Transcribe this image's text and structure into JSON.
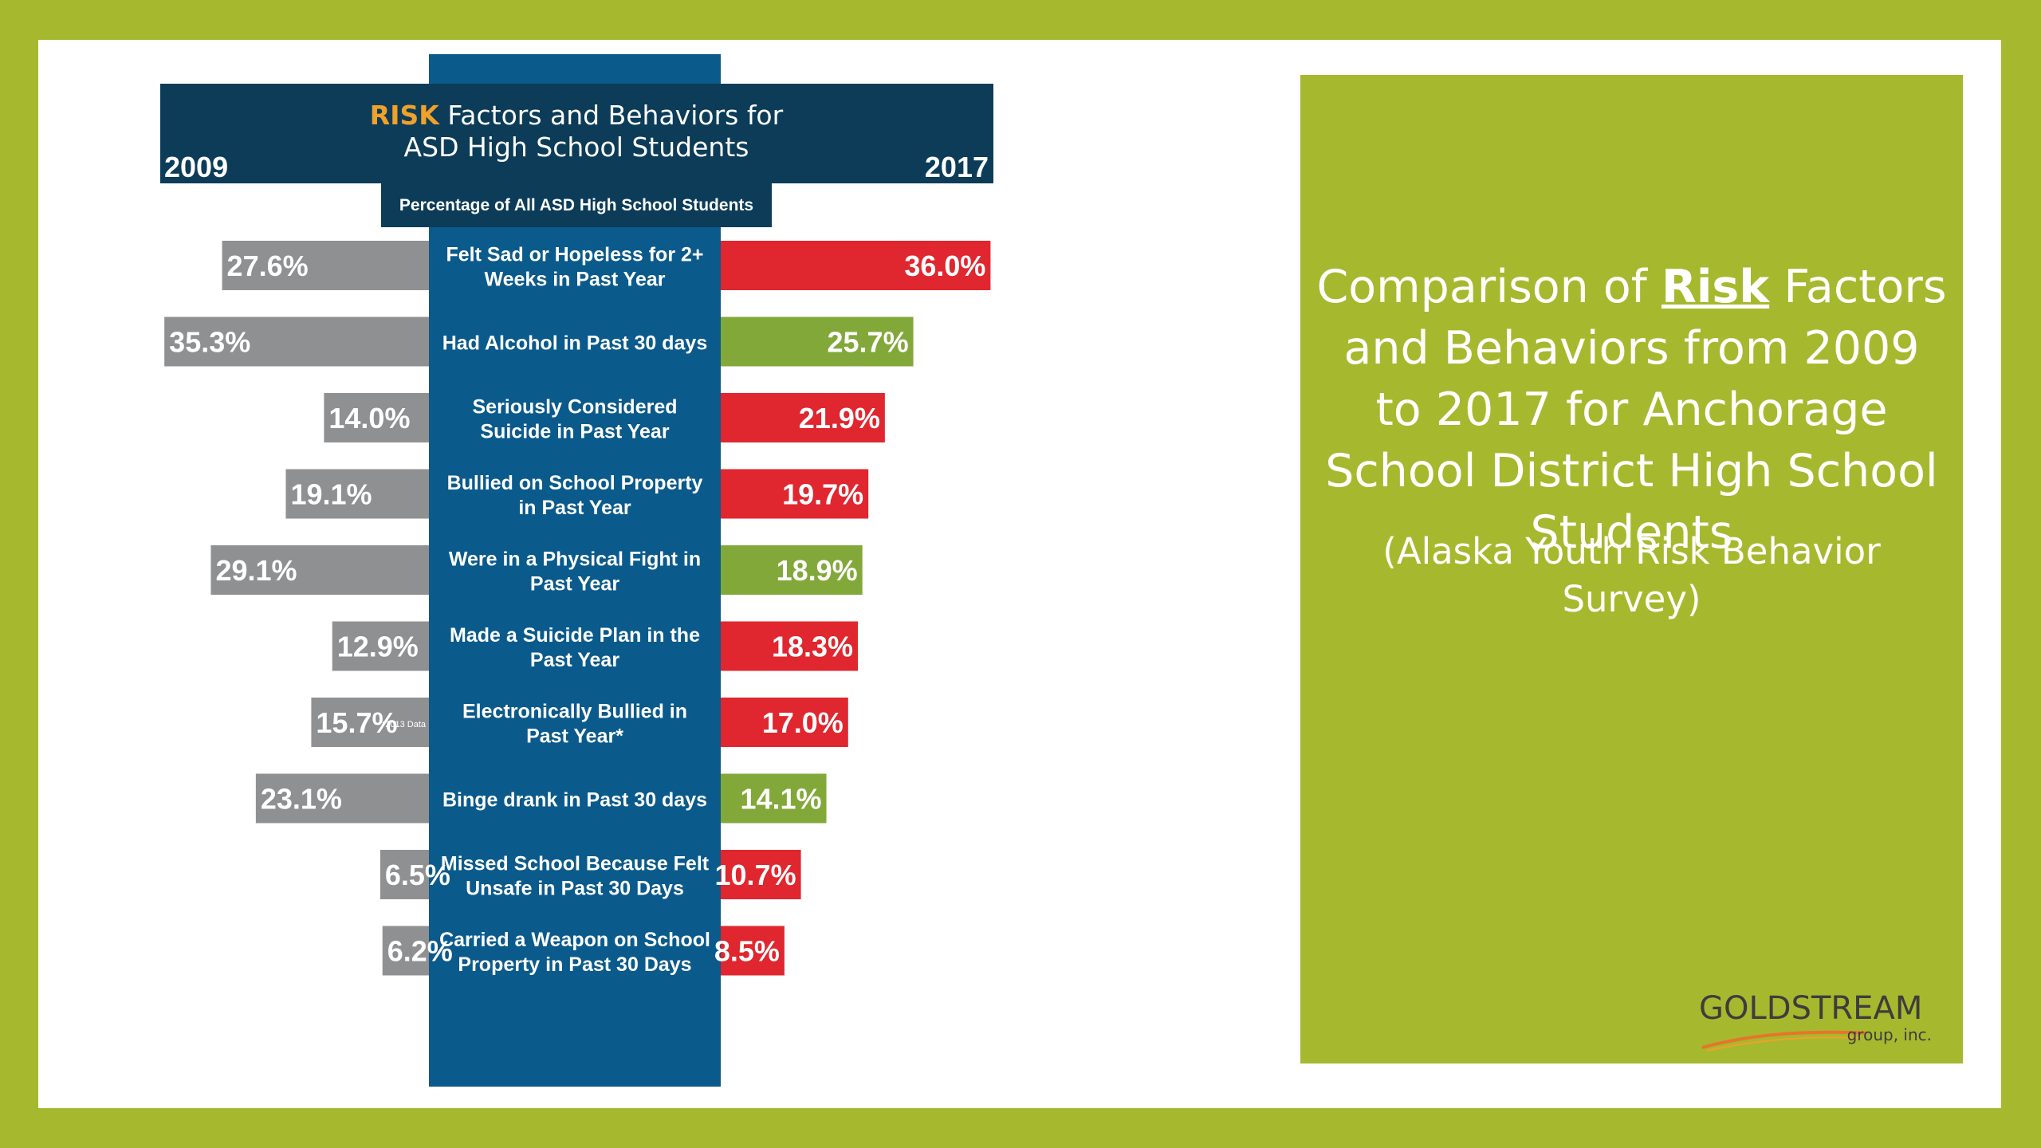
{
  "infographic": {
    "title_risk": "RISK",
    "title_rest": "Factors and Behaviors for",
    "title_line2": "ASD High School Students",
    "year_left": "2009",
    "year_right": "2017",
    "subtitle": "Percentage of All ASD High School Students",
    "footnote": "*2013 Data"
  },
  "panel": {
    "title_part1": "Comparison of ",
    "title_risk": "Risk",
    "title_part2": " Factors and Behaviors from 2009 to 2017 for Anchorage School District High School Students",
    "subtitle": "(Alaska Youth Risk Behavior Survey)",
    "logo_name": "GOLDSTREAM",
    "logo_sub": "group, inc."
  },
  "colors": {
    "frame_green": "#a6b92e",
    "navy": "#0c3c58",
    "center_blue": "#0a5a8c",
    "gray_bar": "#8f9092",
    "red_increase": "#e0262e",
    "green_decrease": "#83a83a",
    "accent_orange": "#f0a12a"
  },
  "chart_data": {
    "type": "bar",
    "orientation": "horizontal, diverging",
    "categories": [
      "Felt Sad or Hopeless for 2+ Weeks in Past Year",
      "Had Alcohol in Past 30 days",
      "Seriously Considered Suicide in Past Year",
      "Bullied on School Property in Past Year",
      "Were in a Physical Fight in Past Year",
      "Made a Suicide Plan in the Past Year",
      "Electronically Bullied in Past Year*",
      "Binge drank in Past 30 days",
      "Missed School Because Felt Unsafe in Past 30 Days",
      "Carried a Weapon on School Property in Past 30 Days"
    ],
    "series": [
      {
        "name": "2009",
        "values": [
          27.6,
          35.3,
          14.0,
          19.1,
          29.1,
          12.9,
          15.7,
          23.1,
          6.5,
          6.2
        ],
        "labels": [
          "27.6%",
          "35.3%",
          "14.0%",
          "19.1%",
          "29.1%",
          "12.9%",
          "15.7%",
          "23.1%",
          "6.5%",
          "6.2%"
        ]
      },
      {
        "name": "2017",
        "values": [
          36.0,
          25.7,
          21.9,
          19.7,
          18.9,
          18.3,
          17.0,
          14.1,
          10.7,
          8.5
        ],
        "labels": [
          "36.0%",
          "25.7%",
          "21.9%",
          "19.7%",
          "18.9%",
          "18.3%",
          "17.0%",
          "14.1%",
          "10.7%",
          "8.5%"
        ],
        "trend": [
          "increase",
          "decrease",
          "increase",
          "increase",
          "decrease",
          "increase",
          "increase",
          "decrease",
          "increase",
          "increase"
        ]
      }
    ],
    "unit": "%"
  }
}
